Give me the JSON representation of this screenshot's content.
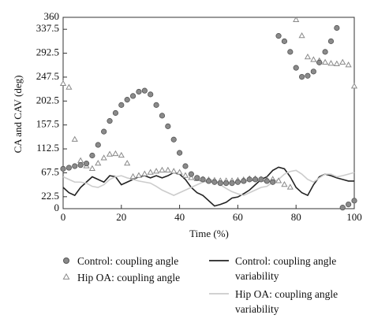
{
  "chart_data": {
    "type": "line",
    "x_label": "Time (%)",
    "y_label": "CA and CAV (deg)",
    "xlim": [
      0,
      100
    ],
    "xticks": [
      0,
      20,
      40,
      60,
      80,
      100
    ],
    "ylim": [
      0,
      360
    ],
    "yticks": [
      0,
      22.5,
      67.5,
      112.5,
      157.5,
      202.5,
      247.5,
      292.5,
      337.5,
      360
    ],
    "x": [
      0,
      2,
      4,
      6,
      8,
      10,
      12,
      14,
      16,
      18,
      20,
      22,
      24,
      26,
      28,
      30,
      32,
      34,
      36,
      38,
      40,
      42,
      44,
      46,
      48,
      50,
      52,
      54,
      56,
      58,
      60,
      62,
      64,
      66,
      68,
      70,
      72,
      74,
      76,
      78,
      80,
      82,
      84,
      86,
      88,
      90,
      92,
      94,
      96,
      98,
      100
    ],
    "series": [
      {
        "name": "Control: coupling angle",
        "type": "scatter",
        "marker": "circle",
        "color": "#8a8a8a",
        "values": [
          75,
          77,
          80,
          82,
          85,
          100,
          120,
          145,
          165,
          180,
          195,
          205,
          212,
          220,
          222,
          215,
          195,
          175,
          155,
          130,
          105,
          80,
          65,
          58,
          55,
          52,
          50,
          48,
          48,
          48,
          50,
          52,
          55,
          55,
          55,
          52,
          50,
          325,
          315,
          295,
          265,
          248,
          250,
          258,
          275,
          295,
          315,
          340,
          2,
          8,
          15
        ]
      },
      {
        "name": "Hip OA: coupling angle",
        "type": "scatter",
        "marker": "triangle",
        "color": "#8a8a8a",
        "values": [
          235,
          228,
          130,
          90,
          80,
          75,
          85,
          95,
          102,
          103,
          100,
          85,
          60,
          62,
          65,
          68,
          70,
          72,
          72,
          70,
          68,
          62,
          58,
          56,
          55,
          54,
          53,
          52,
          52,
          52,
          53,
          54,
          56,
          56,
          55,
          54,
          55,
          52,
          45,
          40,
          355,
          325,
          285,
          280,
          278,
          275,
          273,
          272,
          275,
          270,
          230
        ]
      },
      {
        "name": "Control: coupling angle variability",
        "type": "line",
        "color": "#222222",
        "values": [
          40,
          30,
          25,
          40,
          50,
          60,
          55,
          50,
          62,
          60,
          45,
          50,
          55,
          60,
          62,
          58,
          62,
          58,
          62,
          68,
          65,
          55,
          40,
          30,
          25,
          15,
          5,
          8,
          12,
          20,
          22,
          28,
          35,
          45,
          55,
          60,
          72,
          78,
          75,
          60,
          40,
          30,
          25,
          45,
          60,
          65,
          62,
          58,
          55,
          52,
          52
        ]
      },
      {
        "name": "Hip OA: coupling angle variability",
        "type": "line",
        "color": "#cccccc",
        "values": [
          60,
          55,
          50,
          50,
          48,
          42,
          40,
          45,
          55,
          60,
          62,
          58,
          55,
          52,
          50,
          48,
          42,
          35,
          30,
          25,
          30,
          35,
          40,
          45,
          50,
          52,
          55,
          45,
          38,
          32,
          28,
          25,
          30,
          35,
          40,
          42,
          50,
          55,
          65,
          70,
          72,
          65,
          55,
          50,
          58,
          65,
          65,
          60,
          62,
          65,
          68
        ]
      }
    ]
  }
}
